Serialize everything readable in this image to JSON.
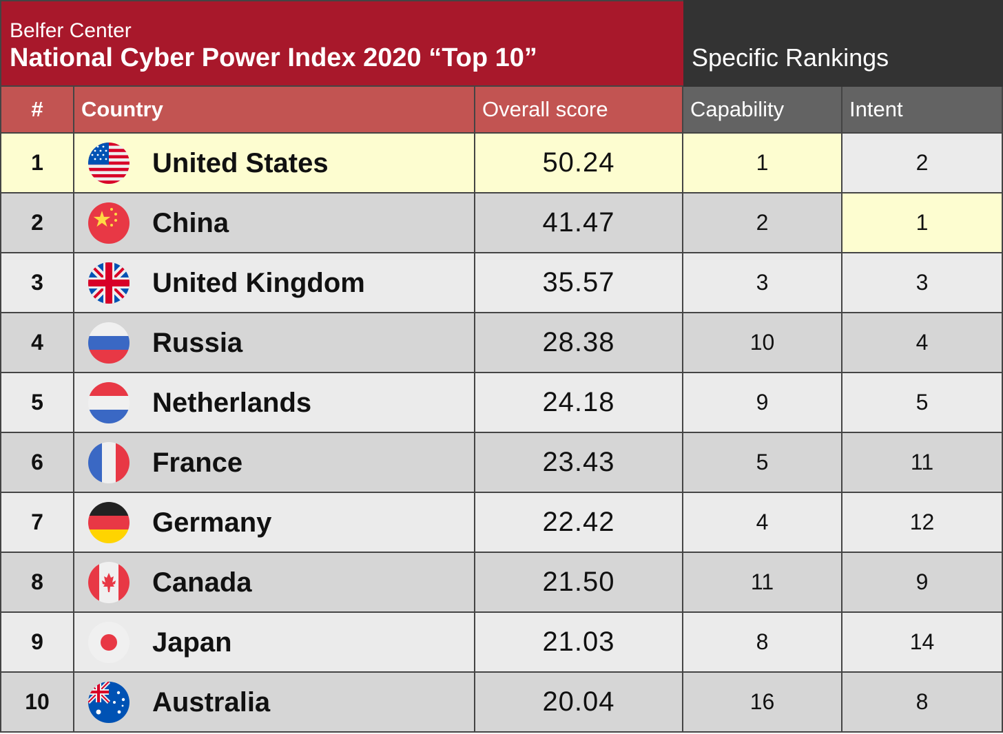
{
  "banner": {
    "org": "Belfer Center",
    "title": "National Cyber Power Index 2020 “Top 10”",
    "right_label": "Specific Rankings"
  },
  "headers": {
    "num": "#",
    "country": "Country",
    "score": "Overall score",
    "capability": "Capability",
    "intent": "Intent"
  },
  "colors": {
    "banner_red": "#a8182b",
    "header_red": "#c25452",
    "banner_dark": "#333333",
    "header_gray": "#636363",
    "highlight": "#fdfdd0"
  },
  "rows": [
    {
      "rank": "1",
      "country": "United States",
      "flag": "us-flag-icon",
      "score": "50.24",
      "capability": "1",
      "intent": "2"
    },
    {
      "rank": "2",
      "country": "China",
      "flag": "china-flag-icon",
      "score": "41.47",
      "capability": "2",
      "intent": "1"
    },
    {
      "rank": "3",
      "country": "United Kingdom",
      "flag": "uk-flag-icon",
      "score": "35.57",
      "capability": "3",
      "intent": "3"
    },
    {
      "rank": "4",
      "country": "Russia",
      "flag": "russia-flag-icon",
      "score": "28.38",
      "capability": "10",
      "intent": "4"
    },
    {
      "rank": "5",
      "country": "Netherlands",
      "flag": "netherlands-flag-icon",
      "score": "24.18",
      "capability": "9",
      "intent": "5"
    },
    {
      "rank": "6",
      "country": "France",
      "flag": "france-flag-icon",
      "score": "23.43",
      "capability": "5",
      "intent": "11"
    },
    {
      "rank": "7",
      "country": "Germany",
      "flag": "germany-flag-icon",
      "score": "22.42",
      "capability": "4",
      "intent": "12"
    },
    {
      "rank": "8",
      "country": "Canada",
      "flag": "canada-flag-icon",
      "score": "21.50",
      "capability": "11",
      "intent": "9"
    },
    {
      "rank": "9",
      "country": "Japan",
      "flag": "japan-flag-icon",
      "score": "21.03",
      "capability": "8",
      "intent": "14"
    },
    {
      "rank": "10",
      "country": "Australia",
      "flag": "australia-flag-icon",
      "score": "20.04",
      "capability": "16",
      "intent": "8"
    }
  ]
}
